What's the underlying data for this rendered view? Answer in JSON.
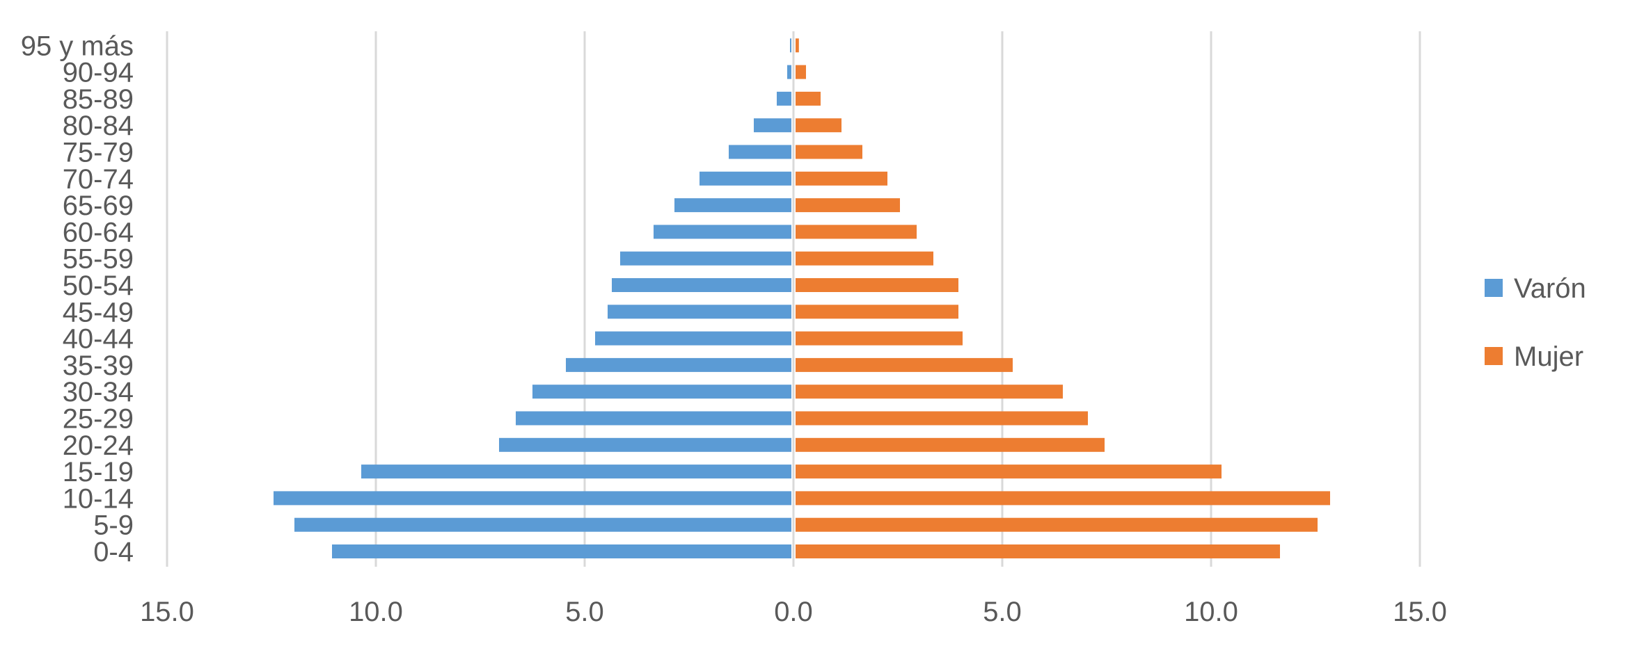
{
  "chart_data": {
    "type": "bar",
    "orientation": "horizontal",
    "layout": "population-pyramid",
    "categories": [
      "0-4",
      "5-9",
      "10-14",
      "15-19",
      "20-24",
      "25-29",
      "30-34",
      "35-39",
      "40-44",
      "45-49",
      "50-54",
      "55-59",
      "60-64",
      "65-69",
      "70-74",
      "75-79",
      "80-84",
      "85-89",
      "90-94",
      "95 y más"
    ],
    "series": [
      {
        "name": "Varón",
        "color": "#5b9bd5",
        "direction": "left",
        "values": [
          11.0,
          11.9,
          12.4,
          10.3,
          7.0,
          6.6,
          6.2,
          5.4,
          4.7,
          4.4,
          4.3,
          4.1,
          3.3,
          2.8,
          2.2,
          1.5,
          0.9,
          0.35,
          0.1,
          0.02
        ]
      },
      {
        "name": "Mujer",
        "color": "#ed7d31",
        "direction": "right",
        "values": [
          11.6,
          12.5,
          12.8,
          10.2,
          7.4,
          7.0,
          6.4,
          5.2,
          4.0,
          3.9,
          3.9,
          3.3,
          2.9,
          2.5,
          2.2,
          1.6,
          1.1,
          0.6,
          0.25,
          0.08
        ]
      }
    ],
    "x_ticks": [
      "15.0",
      "10.0",
      "5.0",
      "0.0",
      "5.0",
      "10.0",
      "15.0"
    ],
    "xlim": [
      -15,
      15
    ],
    "grid": true,
    "legend_position": "right",
    "title": "",
    "xlabel": "",
    "ylabel": ""
  }
}
